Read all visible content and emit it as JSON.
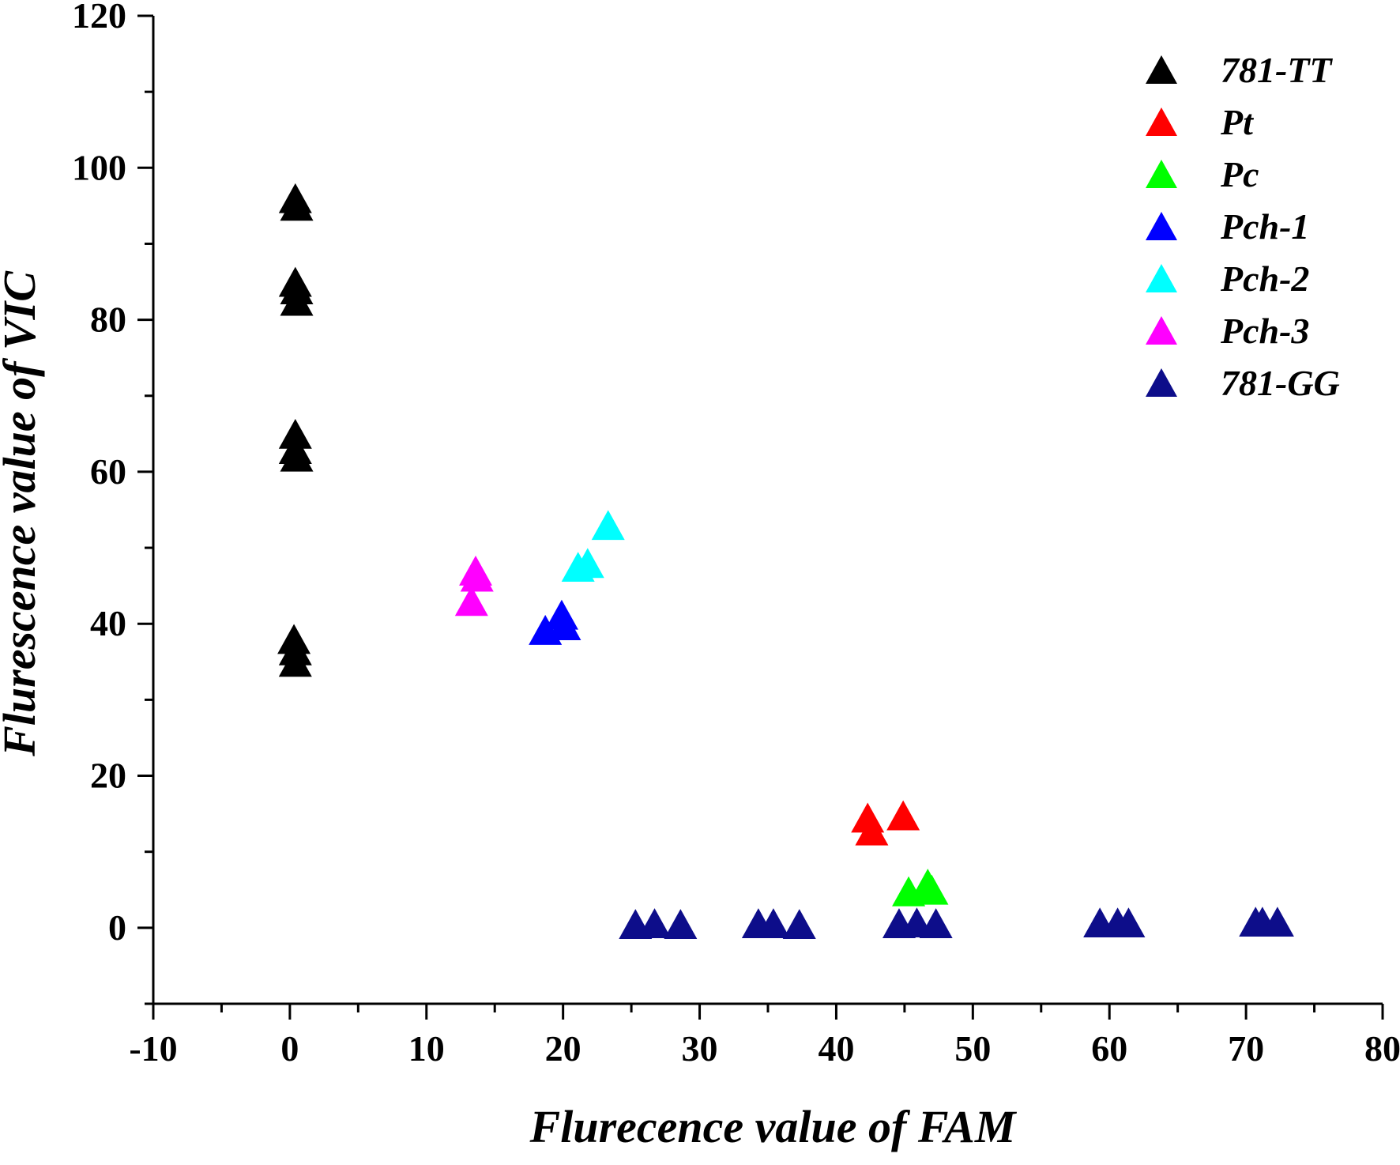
{
  "chart_data": {
    "type": "scatter",
    "title": "",
    "xlabel": "Flurecence value of FAM",
    "ylabel": "Flurescence value of VIC",
    "xlim": [
      -10,
      80
    ],
    "ylim": [
      -10,
      120
    ],
    "xticks": [
      -10,
      0,
      10,
      20,
      30,
      40,
      50,
      60,
      70,
      80
    ],
    "yticks": [
      0,
      20,
      40,
      60,
      80,
      100,
      120
    ],
    "grid": false,
    "legend_position": "top-right",
    "marker": "triangle",
    "series": [
      {
        "name": "781-TT",
        "color": "#000000",
        "points": [
          [
            0.4,
            96
          ],
          [
            0.5,
            95
          ],
          [
            0.4,
            85
          ],
          [
            0.5,
            84
          ],
          [
            0.5,
            82.5
          ],
          [
            0.4,
            65
          ],
          [
            0.4,
            63
          ],
          [
            0.5,
            62
          ],
          [
            0.3,
            38
          ],
          [
            0.4,
            36.5
          ],
          [
            0.4,
            35
          ]
        ]
      },
      {
        "name": "Pt",
        "color": "#ff0000",
        "points": [
          [
            42.3,
            14.5
          ],
          [
            42.6,
            12.8
          ],
          [
            44.9,
            14.8
          ]
        ]
      },
      {
        "name": "Pc",
        "color": "#00ff00",
        "points": [
          [
            45.3,
            4.8
          ],
          [
            46.7,
            5.8
          ],
          [
            47.0,
            5.0
          ]
        ]
      },
      {
        "name": "Pch-1",
        "color": "#0000ff",
        "points": [
          [
            18.7,
            39.2
          ],
          [
            19.9,
            41.2
          ],
          [
            20.1,
            39.8
          ]
        ]
      },
      {
        "name": "Pch-2",
        "color": "#00ffff",
        "points": [
          [
            21.1,
            47.5
          ],
          [
            21.8,
            48.0
          ],
          [
            23.3,
            53.0
          ]
        ]
      },
      {
        "name": "Pch-3",
        "color": "#ff00ff",
        "points": [
          [
            13.6,
            47.0
          ],
          [
            13.7,
            46.2
          ],
          [
            13.3,
            43.0
          ]
        ]
      },
      {
        "name": "781-GG",
        "color": "#0d0d8a",
        "points": [
          [
            25.3,
            0.5
          ],
          [
            26.7,
            0.6
          ],
          [
            28.6,
            0.5
          ],
          [
            34.3,
            0.6
          ],
          [
            35.4,
            0.6
          ],
          [
            37.3,
            0.5
          ],
          [
            44.6,
            0.6
          ],
          [
            45.9,
            0.7
          ],
          [
            47.3,
            0.6
          ],
          [
            59.3,
            0.7
          ],
          [
            60.6,
            0.7
          ],
          [
            61.4,
            0.7
          ],
          [
            70.7,
            0.8
          ],
          [
            71.2,
            0.8
          ],
          [
            72.3,
            0.8
          ]
        ]
      }
    ]
  }
}
